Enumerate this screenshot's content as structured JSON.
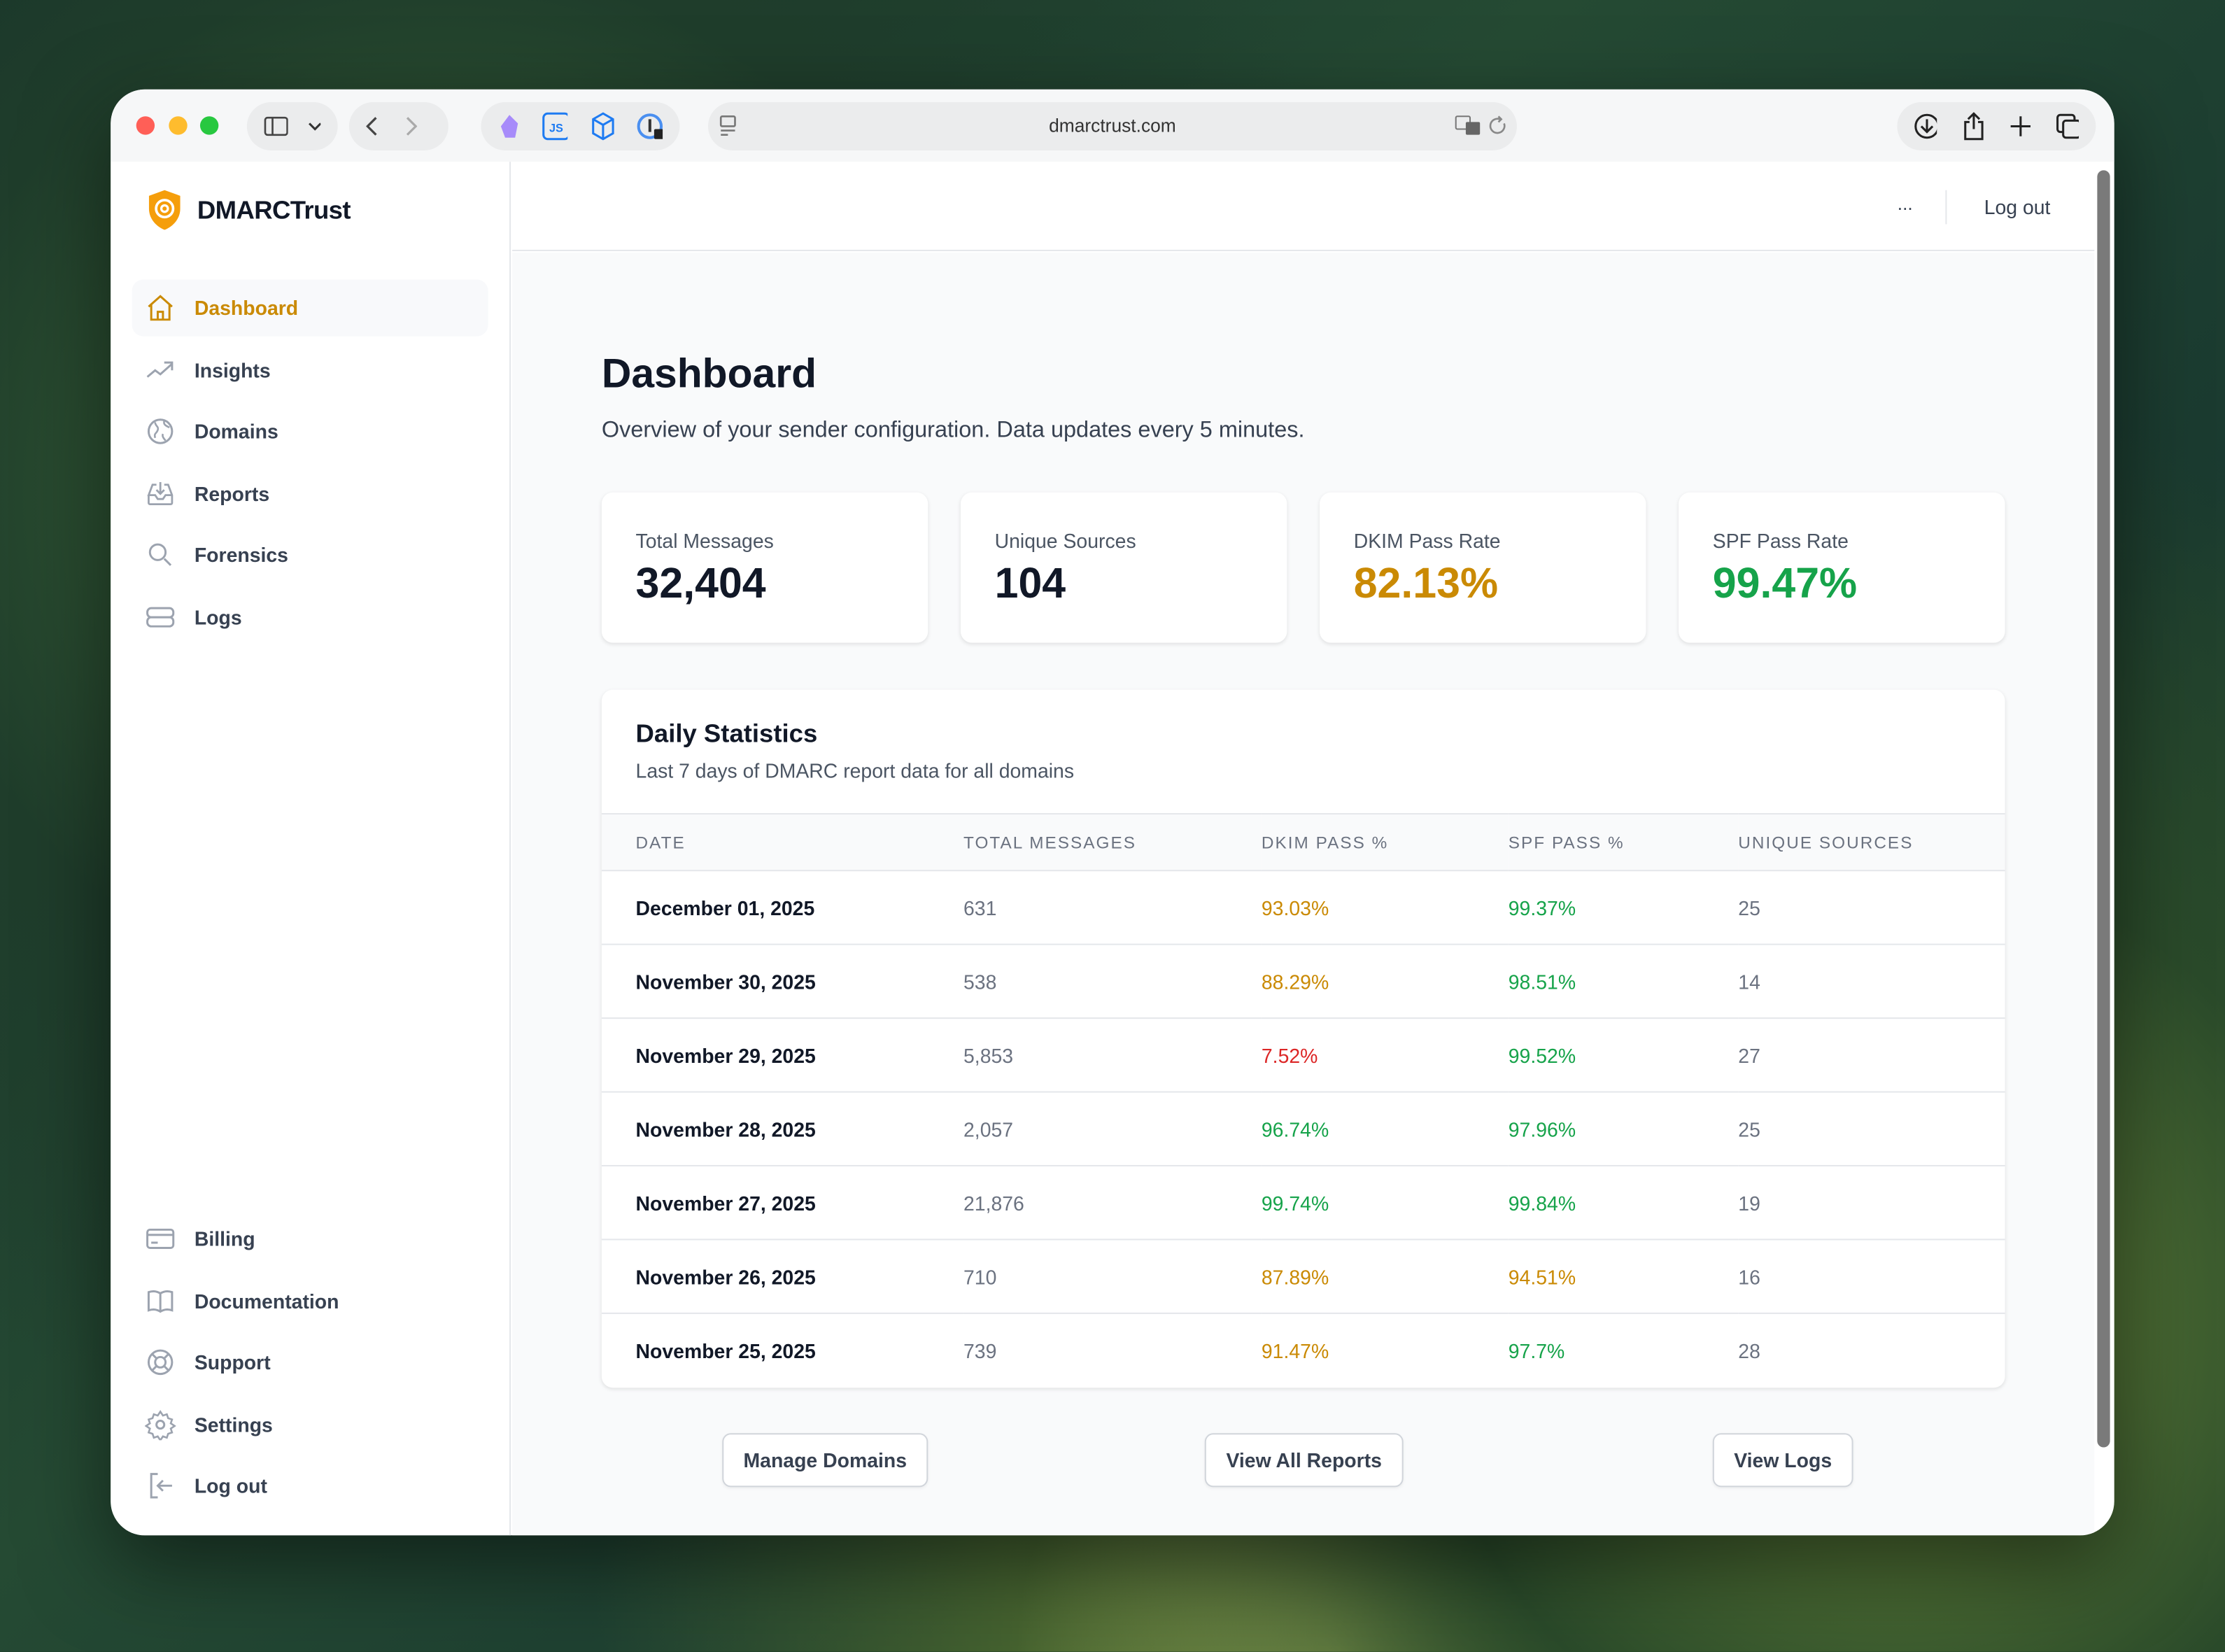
{
  "browser": {
    "url": "dmarctrust.com"
  },
  "brand": {
    "name": "DMARCTrust"
  },
  "sidebar": {
    "items": [
      {
        "label": "Dashboard",
        "icon": "home-icon",
        "active": true
      },
      {
        "label": "Insights",
        "icon": "trending-up-icon"
      },
      {
        "label": "Domains",
        "icon": "globe-icon"
      },
      {
        "label": "Reports",
        "icon": "inbox-download-icon"
      },
      {
        "label": "Forensics",
        "icon": "search-icon"
      },
      {
        "label": "Logs",
        "icon": "server-icon"
      }
    ],
    "bottom_items": [
      {
        "label": "Billing",
        "icon": "credit-card-icon"
      },
      {
        "label": "Documentation",
        "icon": "book-icon"
      },
      {
        "label": "Support",
        "icon": "lifebuoy-icon"
      },
      {
        "label": "Settings",
        "icon": "gear-icon"
      },
      {
        "label": "Log out",
        "icon": "logout-icon"
      }
    ]
  },
  "header": {
    "more": "...",
    "logout": "Log out"
  },
  "page": {
    "title": "Dashboard",
    "subtitle": "Overview of your sender configuration. Data updates every 5 minutes."
  },
  "stats": [
    {
      "label": "Total Messages",
      "value": "32,404",
      "color": "#111827"
    },
    {
      "label": "Unique Sources",
      "value": "104",
      "color": "#111827"
    },
    {
      "label": "DKIM Pass Rate",
      "value": "82.13%",
      "color": "#ca8a04"
    },
    {
      "label": "SPF Pass Rate",
      "value": "99.47%",
      "color": "#16a34a"
    }
  ],
  "daily": {
    "title": "Daily Statistics",
    "subtitle": "Last 7 days of DMARC report data for all domains",
    "columns": [
      "DATE",
      "TOTAL MESSAGES",
      "DKIM PASS %",
      "SPF PASS %",
      "UNIQUE SOURCES"
    ],
    "rows": [
      {
        "date": "December 01, 2025",
        "total": "631",
        "dkim": "93.03%",
        "dkim_color": "#ca8a04",
        "spf": "99.37%",
        "spf_color": "#16a34a",
        "sources": "25"
      },
      {
        "date": "November 30, 2025",
        "total": "538",
        "dkim": "88.29%",
        "dkim_color": "#ca8a04",
        "spf": "98.51%",
        "spf_color": "#16a34a",
        "sources": "14"
      },
      {
        "date": "November 29, 2025",
        "total": "5,853",
        "dkim": "7.52%",
        "dkim_color": "#dc2626",
        "spf": "99.52%",
        "spf_color": "#16a34a",
        "sources": "27"
      },
      {
        "date": "November 28, 2025",
        "total": "2,057",
        "dkim": "96.74%",
        "dkim_color": "#16a34a",
        "spf": "97.96%",
        "spf_color": "#16a34a",
        "sources": "25"
      },
      {
        "date": "November 27, 2025",
        "total": "21,876",
        "dkim": "99.74%",
        "dkim_color": "#16a34a",
        "spf": "99.84%",
        "spf_color": "#16a34a",
        "sources": "19"
      },
      {
        "date": "November 26, 2025",
        "total": "710",
        "dkim": "87.89%",
        "dkim_color": "#ca8a04",
        "spf": "94.51%",
        "spf_color": "#ca8a04",
        "sources": "16"
      },
      {
        "date": "November 25, 2025",
        "total": "739",
        "dkim": "91.47%",
        "dkim_color": "#ca8a04",
        "spf": "97.7%",
        "spf_color": "#16a34a",
        "sources": "28"
      }
    ]
  },
  "actions": {
    "manage_domains": "Manage Domains",
    "view_reports": "View All Reports",
    "view_logs": "View Logs"
  }
}
